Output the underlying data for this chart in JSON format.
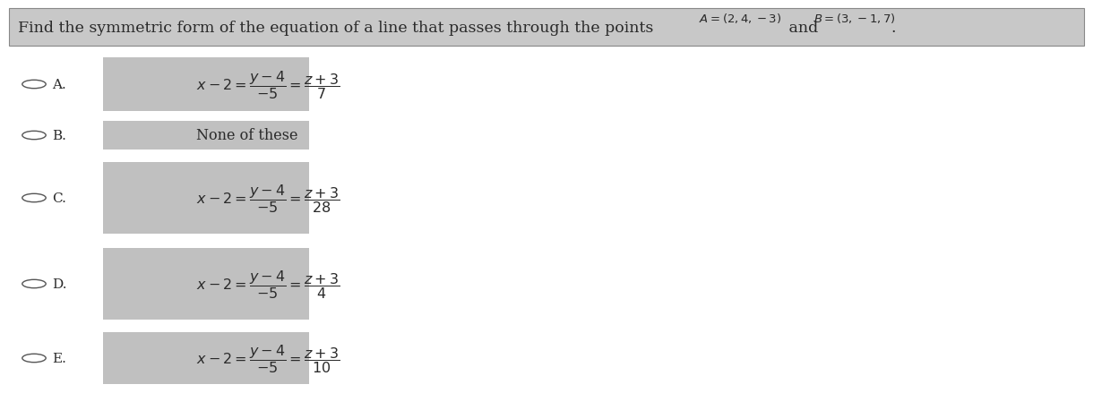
{
  "title_plain": "Find the symmetric form of the equation of a line that passes through the points ",
  "title_A": "$A = (2,4,-3)$",
  "title_and": " and ",
  "title_B": "$B = (3,-1,7)$",
  "title_dot": ".",
  "header_bg": "#c8c8c8",
  "body_bg": "#ffffff",
  "box_bg": "#c0c0c0",
  "text_color": "#2a2a2a",
  "option_labels": [
    "A.",
    "B.",
    "C.",
    "D.",
    "E."
  ],
  "option_eqs": [
    "$x - 2 = \\dfrac{y - 4}{-5} = \\dfrac{z + 3}{7}$",
    "None of these",
    "$x - 2 = \\dfrac{y - 4}{-5} = \\dfrac{z + 3}{28}$",
    "$x - 2 = \\dfrac{y - 4}{-5} = \\dfrac{z + 3}{4}$",
    "$x - 2 = \\dfrac{y - 4}{-5} = \\dfrac{z + 3}{10}$"
  ],
  "figwidth": 12.0,
  "figheight": 4.27,
  "dpi": 100
}
